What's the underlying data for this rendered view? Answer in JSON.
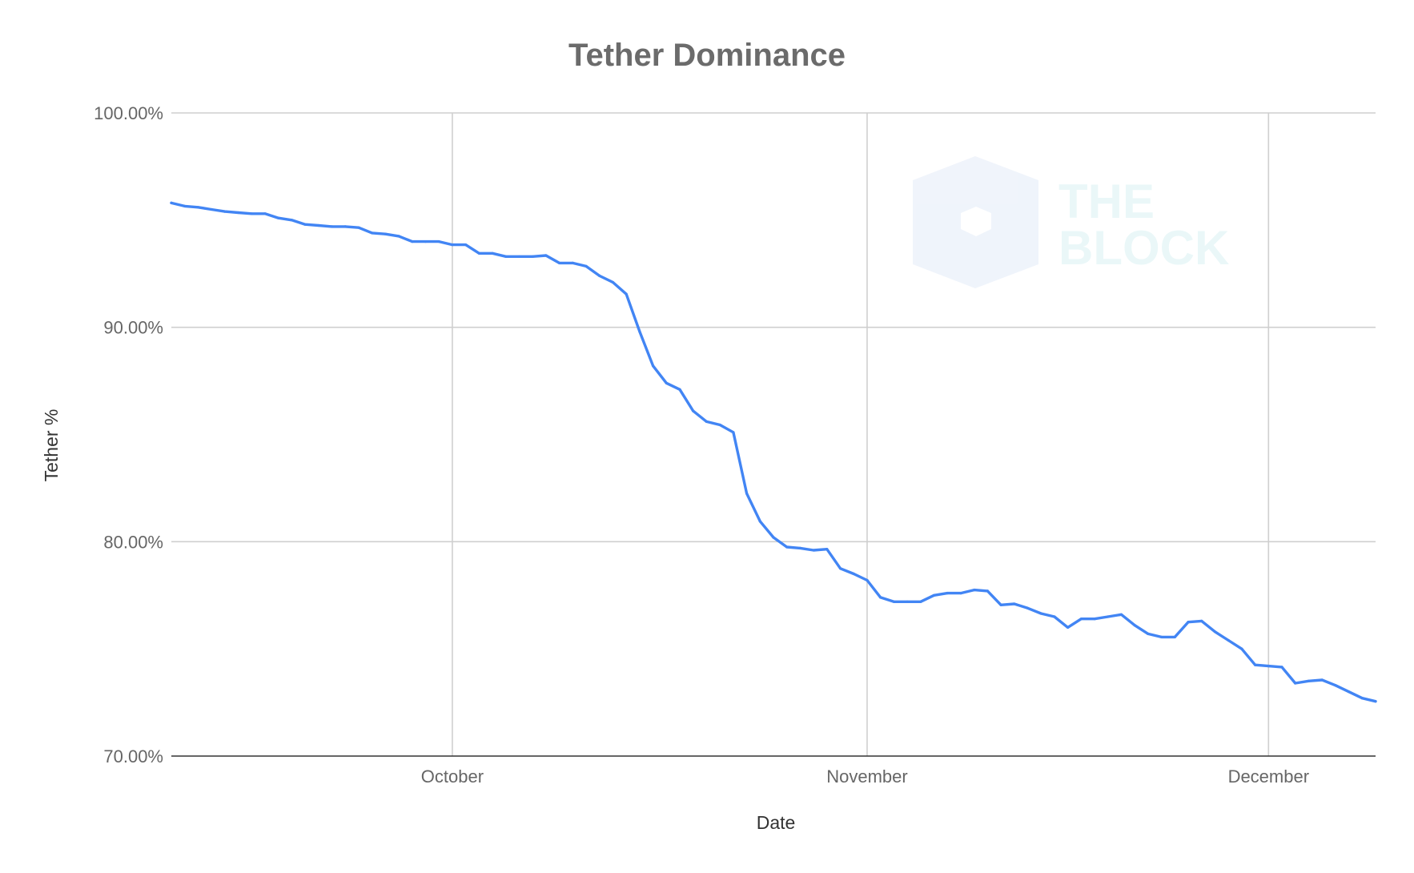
{
  "chart_data": {
    "type": "line",
    "title": "Tether Dominance",
    "xlabel": "Date",
    "ylabel": "Tether %",
    "ylim": [
      70,
      100
    ],
    "y_ticks": [
      "70.00%",
      "80.00%",
      "90.00%",
      "100.00%"
    ],
    "x_ticks": [
      {
        "label": "October",
        "value": "10-01"
      },
      {
        "label": "November",
        "value": "11-01"
      },
      {
        "label": "December",
        "value": "12-01"
      }
    ],
    "x_range": [
      "09-10",
      "12-09"
    ],
    "grid": true,
    "legend": "none",
    "series": [
      {
        "color": "#4285f4",
        "x": [
          "09-10",
          "09-11",
          "09-12",
          "09-13",
          "09-14",
          "09-15",
          "09-16",
          "09-17",
          "09-18",
          "09-19",
          "09-20",
          "09-21",
          "09-22",
          "09-23",
          "09-24",
          "09-25",
          "09-26",
          "09-27",
          "09-28",
          "09-29",
          "09-30",
          "10-01",
          "10-02",
          "10-03",
          "10-04",
          "10-05",
          "10-06",
          "10-07",
          "10-08",
          "10-09",
          "10-10",
          "10-11",
          "10-12",
          "10-13",
          "10-14",
          "10-15",
          "10-16",
          "10-17",
          "10-18",
          "10-19",
          "10-20",
          "10-21",
          "10-22",
          "10-23",
          "10-24",
          "10-25",
          "10-26",
          "10-27",
          "10-28",
          "10-29",
          "10-30",
          "10-31",
          "11-01",
          "11-02",
          "11-03",
          "11-04",
          "11-05",
          "11-06",
          "11-07",
          "11-08",
          "11-09",
          "11-10",
          "11-11",
          "11-12",
          "11-13",
          "11-14",
          "11-15",
          "11-16",
          "11-17",
          "11-18",
          "11-19",
          "11-20",
          "11-21",
          "11-22",
          "11-23",
          "11-24",
          "11-25",
          "11-26",
          "11-27",
          "11-28",
          "11-29",
          "11-30",
          "12-01",
          "12-02",
          "12-03",
          "12-04",
          "12-05",
          "12-06",
          "12-07",
          "12-08",
          "12-09"
        ],
        "values": [
          95.8,
          95.65,
          95.6,
          95.5,
          95.4,
          95.35,
          95.3,
          95.3,
          95.1,
          95.0,
          94.8,
          94.75,
          94.7,
          94.7,
          94.65,
          94.4,
          94.35,
          94.25,
          94.0,
          94.0,
          94.0,
          93.85,
          93.85,
          93.45,
          93.45,
          93.3,
          93.3,
          93.3,
          93.35,
          93.0,
          93.0,
          92.85,
          92.4,
          92.1,
          91.55,
          89.8,
          88.2,
          87.4,
          87.1,
          86.1,
          85.6,
          85.45,
          85.1,
          82.25,
          80.95,
          80.2,
          79.75,
          79.7,
          79.6,
          79.65,
          78.75,
          78.5,
          78.2,
          77.4,
          77.2,
          77.2,
          77.2,
          77.5,
          77.6,
          77.6,
          77.75,
          77.7,
          77.05,
          77.1,
          76.9,
          76.65,
          76.5,
          76.0,
          76.4,
          76.4,
          76.5,
          76.6,
          76.1,
          75.7,
          75.55,
          75.55,
          76.25,
          76.3,
          75.8,
          75.4,
          75.0,
          74.25,
          74.2,
          74.15,
          73.4,
          73.5,
          73.55,
          73.3,
          73.0,
          72.7,
          72.55
        ]
      }
    ]
  },
  "watermark": {
    "line1": "THE",
    "line2": "BLOCK"
  }
}
